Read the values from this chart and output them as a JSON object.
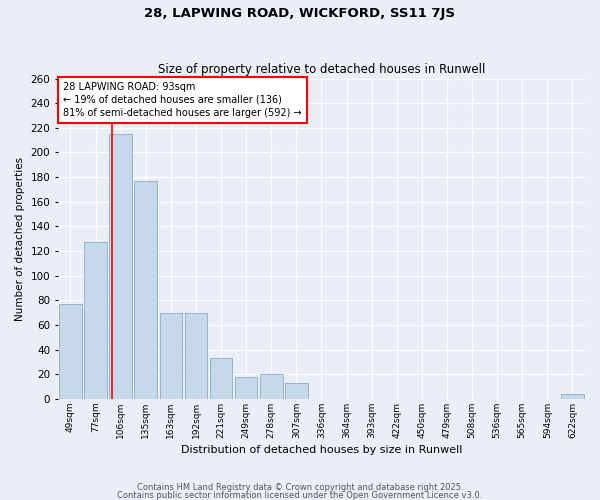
{
  "title1": "28, LAPWING ROAD, WICKFORD, SS11 7JS",
  "title2": "Size of property relative to detached houses in Runwell",
  "xlabel": "Distribution of detached houses by size in Runwell",
  "ylabel": "Number of detached properties",
  "bar_labels": [
    "49sqm",
    "77sqm",
    "106sqm",
    "135sqm",
    "163sqm",
    "192sqm",
    "221sqm",
    "249sqm",
    "278sqm",
    "307sqm",
    "336sqm",
    "364sqm",
    "393sqm",
    "422sqm",
    "450sqm",
    "479sqm",
    "508sqm",
    "536sqm",
    "565sqm",
    "594sqm",
    "622sqm"
  ],
  "bar_values": [
    77,
    127,
    215,
    177,
    70,
    70,
    33,
    18,
    20,
    13,
    0,
    0,
    0,
    0,
    0,
    0,
    0,
    0,
    0,
    0,
    4
  ],
  "bar_color": "#c6d9ea",
  "bar_edge_color": "#8aaec8",
  "background_color": "#eaeff7",
  "grid_color": "#ffffff",
  "annotation_line1": "28 LAPWING ROAD: 93sqm",
  "annotation_line2": "← 19% of detached houses are smaller (136)",
  "annotation_line3": "81% of semi-detached houses are larger (592) →",
  "red_line_x": 1.65,
  "ylim": [
    0,
    260
  ],
  "yticks": [
    0,
    20,
    40,
    60,
    80,
    100,
    120,
    140,
    160,
    180,
    200,
    220,
    240,
    260
  ],
  "footer1": "Contains HM Land Registry data © Crown copyright and database right 2025.",
  "footer2": "Contains public sector information licensed under the Open Government Licence v3.0."
}
